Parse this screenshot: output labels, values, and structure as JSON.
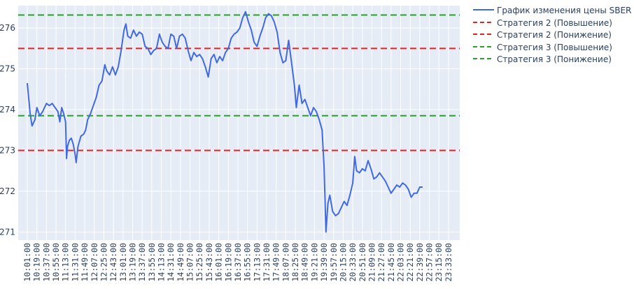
{
  "chart_data": {
    "type": "line",
    "title": "",
    "xlabel": "",
    "ylabel": "",
    "ylim": [
      270.8,
      276.55
    ],
    "yticks": [
      271,
      272,
      273,
      274,
      275,
      276
    ],
    "x_tick_labels": [
      "10:01:00",
      "10:19:00",
      "10:37:00",
      "10:55:00",
      "11:13:00",
      "11:31:00",
      "11:49:00",
      "12:07:00",
      "12:25:00",
      "12:43:00",
      "13:01:00",
      "13:19:00",
      "13:37:00",
      "13:55:00",
      "14:13:00",
      "14:31:00",
      "14:49:00",
      "15:07:00",
      "15:25:00",
      "15:43:00",
      "16:01:00",
      "16:19:00",
      "16:37:00",
      "16:55:00",
      "17:13:00",
      "17:31:00",
      "17:49:00",
      "18:07:00",
      "18:25:00",
      "18:49:00",
      "19:21:00",
      "19:39:00",
      "19:57:00",
      "20:15:00",
      "20:33:00",
      "20:51:00",
      "21:09:00",
      "21:27:00",
      "21:45:00",
      "22:03:00",
      "22:21:00",
      "22:39:00",
      "22:57:00",
      "23:15:00",
      "23:33:00"
    ],
    "grid": true,
    "legend_position": "top-right, outside plot",
    "series": [
      {
        "name": "График изменения цены SBER",
        "color": "#4169e1",
        "style": "solid",
        "points": [
          [
            0,
            274.65
          ],
          [
            0.3,
            273.9
          ],
          [
            0.5,
            273.6
          ],
          [
            0.8,
            273.75
          ],
          [
            1.0,
            274.05
          ],
          [
            1.3,
            273.85
          ],
          [
            1.6,
            273.95
          ],
          [
            2.0,
            274.15
          ],
          [
            2.3,
            274.1
          ],
          [
            2.6,
            274.15
          ],
          [
            2.9,
            274.05
          ],
          [
            3.2,
            273.95
          ],
          [
            3.4,
            273.7
          ],
          [
            3.6,
            274.05
          ],
          [
            3.8,
            273.9
          ],
          [
            4.0,
            273.7
          ],
          [
            4.1,
            272.8
          ],
          [
            4.2,
            273.1
          ],
          [
            4.4,
            273.25
          ],
          [
            4.6,
            273.3
          ],
          [
            4.8,
            273.15
          ],
          [
            5.0,
            272.9
          ],
          [
            5.1,
            272.7
          ],
          [
            5.3,
            273.1
          ],
          [
            5.6,
            273.35
          ],
          [
            5.9,
            273.4
          ],
          [
            6.1,
            273.5
          ],
          [
            6.3,
            273.75
          ],
          [
            6.6,
            273.9
          ],
          [
            6.9,
            274.1
          ],
          [
            7.2,
            274.3
          ],
          [
            7.5,
            274.6
          ],
          [
            7.8,
            274.7
          ],
          [
            8.1,
            275.1
          ],
          [
            8.3,
            274.95
          ],
          [
            8.6,
            274.85
          ],
          [
            8.9,
            275.05
          ],
          [
            9.2,
            274.85
          ],
          [
            9.5,
            275.05
          ],
          [
            9.8,
            275.45
          ],
          [
            10.1,
            275.95
          ],
          [
            10.3,
            276.1
          ],
          [
            10.5,
            275.8
          ],
          [
            10.8,
            275.75
          ],
          [
            11.1,
            275.95
          ],
          [
            11.4,
            275.8
          ],
          [
            11.7,
            275.9
          ],
          [
            12.0,
            275.85
          ],
          [
            12.3,
            275.55
          ],
          [
            12.6,
            275.5
          ],
          [
            12.9,
            275.35
          ],
          [
            13.2,
            275.45
          ],
          [
            13.5,
            275.5
          ],
          [
            13.8,
            275.85
          ],
          [
            14.1,
            275.65
          ],
          [
            14.4,
            275.55
          ],
          [
            14.7,
            275.5
          ],
          [
            15.0,
            275.85
          ],
          [
            15.3,
            275.8
          ],
          [
            15.6,
            275.5
          ],
          [
            15.9,
            275.8
          ],
          [
            16.2,
            275.85
          ],
          [
            16.5,
            275.75
          ],
          [
            16.8,
            275.45
          ],
          [
            17.1,
            275.2
          ],
          [
            17.4,
            275.4
          ],
          [
            17.7,
            275.3
          ],
          [
            18.0,
            275.35
          ],
          [
            18.3,
            275.25
          ],
          [
            18.6,
            275.05
          ],
          [
            18.9,
            274.8
          ],
          [
            19.2,
            275.25
          ],
          [
            19.5,
            275.35
          ],
          [
            19.8,
            275.15
          ],
          [
            20.1,
            275.3
          ],
          [
            20.4,
            275.2
          ],
          [
            20.7,
            275.4
          ],
          [
            21.0,
            275.5
          ],
          [
            21.3,
            275.75
          ],
          [
            21.6,
            275.85
          ],
          [
            21.9,
            275.9
          ],
          [
            22.2,
            276.0
          ],
          [
            22.5,
            276.25
          ],
          [
            22.8,
            276.4
          ],
          [
            23.1,
            276.15
          ],
          [
            23.4,
            275.95
          ],
          [
            23.7,
            275.65
          ],
          [
            24.0,
            275.55
          ],
          [
            24.3,
            275.8
          ],
          [
            24.6,
            276.0
          ],
          [
            24.9,
            276.25
          ],
          [
            25.2,
            276.35
          ],
          [
            25.5,
            276.3
          ],
          [
            25.8,
            276.15
          ],
          [
            26.1,
            275.9
          ],
          [
            26.4,
            275.4
          ],
          [
            26.7,
            275.15
          ],
          [
            27.0,
            275.2
          ],
          [
            27.3,
            275.7
          ],
          [
            27.6,
            275.15
          ],
          [
            27.9,
            274.6
          ],
          [
            28.1,
            274.05
          ],
          [
            28.4,
            274.6
          ],
          [
            28.7,
            274.15
          ],
          [
            29.0,
            274.25
          ],
          [
            29.3,
            274.05
          ],
          [
            29.6,
            273.85
          ],
          [
            29.9,
            274.05
          ],
          [
            30.2,
            273.95
          ],
          [
            30.5,
            273.75
          ],
          [
            30.8,
            273.5
          ],
          [
            31.0,
            272.6
          ],
          [
            31.2,
            271.0
          ],
          [
            31.4,
            271.7
          ],
          [
            31.6,
            271.9
          ],
          [
            31.9,
            271.5
          ],
          [
            32.2,
            271.4
          ],
          [
            32.5,
            271.45
          ],
          [
            32.8,
            271.6
          ],
          [
            33.1,
            271.75
          ],
          [
            33.4,
            271.65
          ],
          [
            33.7,
            271.9
          ],
          [
            34.0,
            272.2
          ],
          [
            34.2,
            272.85
          ],
          [
            34.4,
            272.5
          ],
          [
            34.7,
            272.45
          ],
          [
            35.0,
            272.55
          ],
          [
            35.3,
            272.5
          ],
          [
            35.6,
            272.75
          ],
          [
            35.9,
            272.55
          ],
          [
            36.2,
            272.3
          ],
          [
            36.5,
            272.35
          ],
          [
            36.8,
            272.45
          ],
          [
            37.1,
            272.35
          ],
          [
            37.4,
            272.25
          ],
          [
            37.7,
            272.1
          ],
          [
            38.0,
            271.95
          ],
          [
            38.3,
            272.05
          ],
          [
            38.6,
            272.15
          ],
          [
            38.9,
            272.1
          ],
          [
            39.2,
            272.2
          ],
          [
            39.5,
            272.15
          ],
          [
            39.8,
            272.05
          ],
          [
            40.1,
            271.85
          ],
          [
            40.4,
            271.95
          ],
          [
            40.7,
            271.95
          ],
          [
            41.0,
            272.1
          ],
          [
            41.3,
            272.1
          ]
        ]
      },
      {
        "name": "Стратегия 2 (Повышение)",
        "color": "#d62728",
        "style": "dashed",
        "y": 273.0
      },
      {
        "name": "Стратегия 2 (Понижение)",
        "color": "#d62728",
        "style": "dashed",
        "y": 275.5
      },
      {
        "name": "Стратегия 3 (Повышение)",
        "color": "#2ca02c",
        "style": "dashed",
        "y": 276.32
      },
      {
        "name": "Стратегия 3 (Понижение)",
        "color": "#2ca02c",
        "style": "dashed",
        "y": 273.85
      }
    ]
  }
}
